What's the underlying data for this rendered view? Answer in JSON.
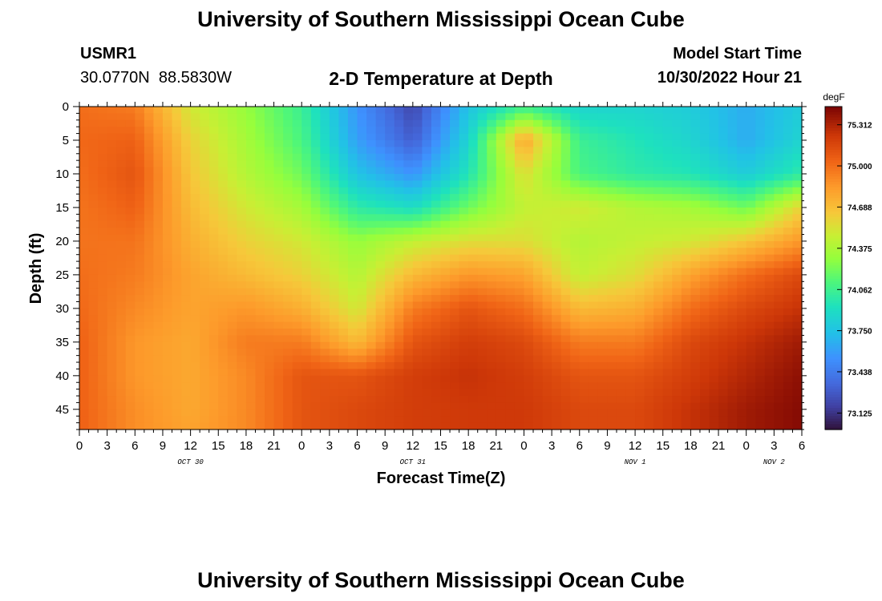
{
  "page": {
    "title": "University of Southern Mississippi Ocean Cube",
    "title_repeat": "University of Southern Mississippi Ocean Cube",
    "station_id": "USMR1",
    "station_coords": "30.0770N  88.5830W",
    "plot_title": "2-D Temperature at Depth",
    "model_start_label": "Model Start Time",
    "model_start_value": "10/30/2022 Hour 21"
  },
  "chart_data": {
    "type": "heatmap",
    "title": "2-D Temperature at Depth",
    "xlabel": "Forecast Time(Z)",
    "ylabel": "Depth (ft)",
    "colorbar_unit": "degF",
    "x_range_hours": [
      0,
      78
    ],
    "x_tick_labels": [
      "0",
      "3",
      "6",
      "9",
      "12",
      "15",
      "18",
      "21",
      "0",
      "3",
      "6",
      "9",
      "12",
      "15",
      "18",
      "21",
      "0",
      "3",
      "6",
      "9",
      "12",
      "15",
      "18",
      "21",
      "0",
      "3",
      "6"
    ],
    "date_labels": [
      {
        "text": "OCT 30",
        "hour": 12
      },
      {
        "text": "OCT 31",
        "hour": 36
      },
      {
        "text": "NOV 1",
        "hour": 60
      },
      {
        "text": "NOV 2",
        "hour": 75
      }
    ],
    "y_range_ft": [
      0,
      48
    ],
    "y_tick_labels": [
      "0",
      "5",
      "10",
      "15",
      "20",
      "25",
      "30",
      "35",
      "40",
      "45"
    ],
    "y_ticks": [
      0,
      5,
      10,
      15,
      20,
      25,
      30,
      35,
      40,
      45
    ],
    "colorbar_ticks": [
      "75.312",
      "75.000",
      "74.688",
      "74.375",
      "74.062",
      "73.750",
      "73.438",
      "73.125"
    ],
    "colorbar_range": [
      73.0,
      75.45
    ],
    "colorscale": "turbo",
    "depth_rows_ft": [
      0,
      5,
      10,
      15,
      20,
      25,
      30,
      35,
      40,
      45,
      48
    ],
    "time_cols_hours": [
      0,
      6,
      12,
      18,
      24,
      30,
      36,
      42,
      48,
      54,
      60,
      66,
      72,
      78
    ],
    "values_degF": [
      [
        75.0,
        74.95,
        74.5,
        74.3,
        74.05,
        73.55,
        73.2,
        73.75,
        74.05,
        73.85,
        73.85,
        73.8,
        73.65,
        73.8
      ],
      [
        75.02,
        75.05,
        74.6,
        74.35,
        74.1,
        73.6,
        73.3,
        73.85,
        74.8,
        74.05,
        73.95,
        73.85,
        73.65,
        73.85
      ],
      [
        75.0,
        75.1,
        74.65,
        74.4,
        74.2,
        73.75,
        73.55,
        73.95,
        74.55,
        74.1,
        74.0,
        73.95,
        73.8,
        74.0
      ],
      [
        74.98,
        75.05,
        74.7,
        74.5,
        74.35,
        74.0,
        73.9,
        74.2,
        74.45,
        74.5,
        74.4,
        74.35,
        74.2,
        74.6
      ],
      [
        74.98,
        74.98,
        74.75,
        74.6,
        74.5,
        74.3,
        74.45,
        74.55,
        74.55,
        74.4,
        74.45,
        74.5,
        74.65,
        74.85
      ],
      [
        75.0,
        74.95,
        74.8,
        74.7,
        74.6,
        74.4,
        74.7,
        74.85,
        74.8,
        74.45,
        74.55,
        74.8,
        75.0,
        75.15
      ],
      [
        75.02,
        74.9,
        74.8,
        74.85,
        74.75,
        74.5,
        74.95,
        75.1,
        75.0,
        74.7,
        74.75,
        75.0,
        75.15,
        75.25
      ],
      [
        75.05,
        74.85,
        74.78,
        74.95,
        74.95,
        74.7,
        75.1,
        75.2,
        75.15,
        74.95,
        74.95,
        75.15,
        75.25,
        75.35
      ],
      [
        75.05,
        74.85,
        74.78,
        74.9,
        75.1,
        75.1,
        75.2,
        75.25,
        75.2,
        75.1,
        75.1,
        75.2,
        75.3,
        75.4
      ],
      [
        75.05,
        74.88,
        74.78,
        74.9,
        75.1,
        75.15,
        75.2,
        75.22,
        75.22,
        75.15,
        75.15,
        75.25,
        75.35,
        75.42
      ],
      [
        75.05,
        74.88,
        74.8,
        74.9,
        75.1,
        75.15,
        75.2,
        75.22,
        75.22,
        75.15,
        75.15,
        75.25,
        75.35,
        75.42
      ]
    ]
  }
}
